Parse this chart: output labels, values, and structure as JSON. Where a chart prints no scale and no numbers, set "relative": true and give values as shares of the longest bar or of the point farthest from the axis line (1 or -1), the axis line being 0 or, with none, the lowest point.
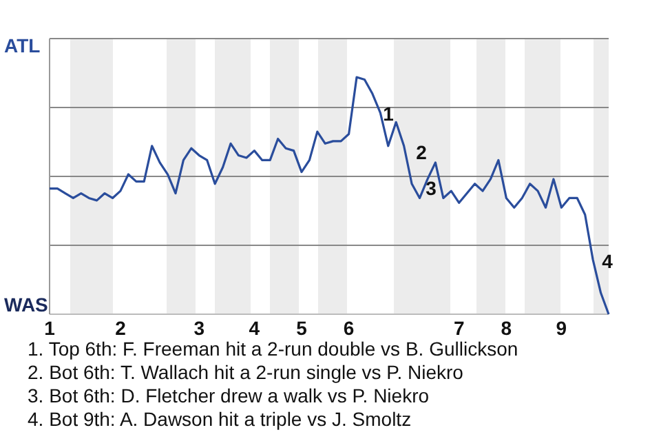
{
  "chart_data": {
    "type": "line",
    "relative": true,
    "categories": [
      "1",
      null,
      null,
      null,
      null,
      null,
      null,
      null,
      null,
      "2",
      null,
      null,
      null,
      null,
      null,
      null,
      null,
      null,
      null,
      "3",
      null,
      null,
      null,
      null,
      null,
      null,
      "4",
      null,
      null,
      null,
      null,
      null,
      "5",
      null,
      null,
      null,
      null,
      null,
      "6",
      null,
      null,
      null,
      null,
      null,
      null,
      null,
      null,
      null,
      null,
      null,
      null,
      null,
      "7",
      null,
      null,
      null,
      null,
      null,
      "8",
      null,
      null,
      null,
      null,
      null,
      null,
      "9",
      null,
      null,
      null,
      null,
      null,
      null
    ],
    "series": [
      {
        "color": "#2a4d9c",
        "values": [
          0.53,
          0.53,
          0.51,
          0.49,
          0.51,
          0.49,
          0.48,
          0.51,
          0.49,
          0.52,
          0.59,
          0.56,
          0.56,
          0.71,
          0.64,
          0.59,
          0.51,
          0.65,
          0.7,
          0.67,
          0.65,
          0.55,
          0.62,
          0.72,
          0.67,
          0.66,
          0.69,
          0.65,
          0.65,
          0.74,
          0.7,
          0.69,
          0.6,
          0.65,
          0.77,
          0.72,
          0.73,
          0.73,
          0.76,
          1,
          0.99,
          0.93,
          0.85,
          0.71,
          0.81,
          0.71,
          0.55,
          0.49,
          0.57,
          0.64,
          0.49,
          0.52,
          0.47,
          0.51,
          0.55,
          0.52,
          0.57,
          0.65,
          0.49,
          0.45,
          0.49,
          0.55,
          0.52,
          0.45,
          0.57,
          0.45,
          0.49,
          0.49,
          0.42,
          0.23,
          0.09,
          0
        ]
      }
    ],
    "annotations": [
      "ATL",
      "WAS",
      "1",
      "2",
      "3",
      "4",
      "1. Top 6th: F. Freeman hit a 2-run double vs B. Gullickson",
      "2. Bot 6th: T. Wallach hit a 2-run single vs P. Niekro",
      "3. Bot 6th: D. Fletcher drew a walk vs P. Niekro",
      "4. Bot 9th: A. Dawson hit a triple vs J. Smoltz"
    ],
    "line_style": "solid",
    "marker": "none"
  }
}
